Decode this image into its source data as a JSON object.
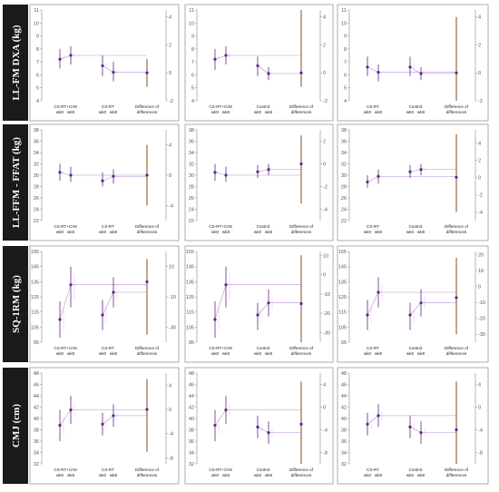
{
  "colors": {
    "label_bg": "#1a1a1a",
    "primary": "#5b2a86",
    "secondary": "#b98fd6",
    "diff_ci": "#8b4a12",
    "faint": "#f3d6f3",
    "axis": "#888888"
  },
  "rows": [
    {
      "label": "LL-FM DXA (kg)",
      "left_ticks": [
        "4",
        "5",
        "6",
        "7",
        "8",
        "9",
        "10",
        "11"
      ],
      "left_lim": [
        4,
        11
      ]
    },
    {
      "label": "LL-FFM - FFAT (kg)",
      "left_ticks": [
        "22",
        "24",
        "26",
        "28",
        "30",
        "32",
        "34",
        "36",
        "38"
      ],
      "left_lim": [
        22,
        38
      ]
    },
    {
      "label": "SQ-1RM (kg)",
      "left_ticks": [
        "95",
        "105",
        "115",
        "125",
        "135",
        "145",
        "155"
      ],
      "left_lim": [
        95,
        155
      ]
    },
    {
      "label": "CMJ (cm)",
      "left_ticks": [
        "32",
        "34",
        "36",
        "38",
        "40",
        "42",
        "44",
        "46",
        "48"
      ],
      "left_lim": [
        32,
        48
      ]
    }
  ],
  "x_labels": {
    "wk0": "wk0",
    "wk8": "wk8",
    "diff": [
      "Difference of",
      "differences"
    ]
  },
  "chart_data": [
    {
      "type": "scatter",
      "row": 0,
      "col": 0,
      "groups": [
        "CS-RT+CrM",
        "CS-RT"
      ],
      "right_ticks": [
        "-2",
        "0",
        "2",
        "4"
      ],
      "right_lim": [
        -2,
        4.5
      ],
      "series": [
        {
          "name": "CS-RT+CrM",
          "wk0": [
            7.2,
            6.5,
            8.0
          ],
          "wk8": [
            7.5,
            6.8,
            8.2
          ]
        },
        {
          "name": "CS-RT",
          "wk0": [
            6.7,
            5.9,
            7.5
          ],
          "wk8": [
            6.2,
            5.5,
            7.0
          ]
        }
      ],
      "diff": [
        0.0,
        -1.0,
        1.0
      ]
    },
    {
      "type": "scatter",
      "row": 0,
      "col": 1,
      "groups": [
        "CS-RT+CrM",
        "Control"
      ],
      "right_ticks": [
        "-2",
        "0",
        "2",
        "4"
      ],
      "right_lim": [
        -2,
        4.5
      ],
      "series": [
        {
          "name": "CS-RT+CrM",
          "wk0": [
            7.2,
            6.4,
            8.0
          ],
          "wk8": [
            7.5,
            6.8,
            8.2
          ]
        },
        {
          "name": "Control",
          "wk0": [
            6.7,
            5.9,
            7.4
          ],
          "wk8": [
            6.1,
            5.6,
            6.6
          ]
        }
      ],
      "diff": [
        0.0,
        -1.0,
        4.5
      ]
    },
    {
      "type": "scatter",
      "row": 0,
      "col": 2,
      "groups": [
        "CS-RT",
        "Control"
      ],
      "right_ticks": [
        "-2",
        "0",
        "2",
        "4"
      ],
      "right_lim": [
        -2,
        4.5
      ],
      "series": [
        {
          "name": "CS-RT",
          "wk0": [
            6.6,
            5.9,
            7.4
          ],
          "wk8": [
            6.2,
            5.5,
            6.8
          ]
        },
        {
          "name": "Control",
          "wk0": [
            6.6,
            5.9,
            7.4
          ],
          "wk8": [
            6.1,
            5.6,
            6.6
          ]
        }
      ],
      "diff": [
        0.0,
        -2.0,
        4.0
      ]
    },
    {
      "type": "scatter",
      "row": 1,
      "col": 0,
      "groups": [
        "CS-RT+CrM",
        "CS-RT"
      ],
      "right_ticks": [
        "-4",
        "0",
        "4"
      ],
      "right_lim": [
        -6,
        6
      ],
      "series": [
        {
          "name": "CS-RT+CrM",
          "wk0": [
            30.5,
            29.0,
            32.0
          ],
          "wk8": [
            30.0,
            28.8,
            31.5
          ]
        },
        {
          "name": "CS-RT",
          "wk0": [
            29.0,
            28.0,
            30.5
          ],
          "wk8": [
            29.8,
            28.5,
            31.0
          ]
        }
      ],
      "diff": [
        0.0,
        -4.0,
        4.0
      ]
    },
    {
      "type": "scatter",
      "row": 1,
      "col": 1,
      "groups": [
        "CS-RT+CrM",
        "Control"
      ],
      "right_ticks": [
        "-4",
        "-2",
        "0",
        "2"
      ],
      "right_lim": [
        -5,
        3
      ],
      "series": [
        {
          "name": "CS-RT+CrM",
          "wk0": [
            30.5,
            29.0,
            32.0
          ],
          "wk8": [
            30.0,
            28.8,
            31.5
          ]
        },
        {
          "name": "Control",
          "wk0": [
            30.6,
            29.5,
            31.8
          ],
          "wk8": [
            31.0,
            30.0,
            32.0
          ]
        }
      ],
      "diff": [
        0.0,
        -3.5,
        2.5
      ]
    },
    {
      "type": "scatter",
      "row": 1,
      "col": 2,
      "groups": [
        "CS-RT",
        "Control"
      ],
      "right_ticks": [
        "-4",
        "-2",
        "0",
        "2",
        "4"
      ],
      "right_lim": [
        -5,
        5.5
      ],
      "series": [
        {
          "name": "CS-RT",
          "wk0": [
            28.8,
            27.8,
            30.0
          ],
          "wk8": [
            29.8,
            28.5,
            31.0
          ]
        },
        {
          "name": "Control",
          "wk0": [
            30.6,
            29.5,
            31.8
          ],
          "wk8": [
            31.0,
            30.0,
            32.0
          ]
        }
      ],
      "diff": [
        0.0,
        -4.0,
        5.0
      ]
    },
    {
      "type": "scatter",
      "row": 2,
      "col": 0,
      "groups": [
        "CS-RT+CrM",
        "CS-RT"
      ],
      "right_ticks": [
        "-30",
        "-10",
        "10"
      ],
      "right_lim": [
        -40,
        20
      ],
      "series": [
        {
          "name": "CS-RT+CrM",
          "wk0": [
            110.0,
            98.0,
            122.0
          ],
          "wk8": [
            133.0,
            118.0,
            145.0
          ]
        },
        {
          "name": "CS-RT",
          "wk0": [
            113.0,
            103.0,
            123.0
          ],
          "wk8": [
            128.0,
            118.0,
            138.0
          ]
        }
      ],
      "diff": [
        0.0,
        -35.0,
        15.0
      ]
    },
    {
      "type": "scatter",
      "row": 2,
      "col": 1,
      "groups": [
        "CS-RT+CrM",
        "Control"
      ],
      "right_ticks": [
        "-30",
        "-20",
        "-10",
        "0",
        "10"
      ],
      "right_lim": [
        -35,
        12
      ],
      "series": [
        {
          "name": "CS-RT+CrM",
          "wk0": [
            110.0,
            98.0,
            122.0
          ],
          "wk8": [
            133.0,
            118.0,
            145.0
          ]
        },
        {
          "name": "Control",
          "wk0": [
            113.0,
            103.0,
            121.0
          ],
          "wk8": [
            121.0,
            112.0,
            130.0
          ]
        }
      ],
      "diff": [
        -15.0,
        -35.0,
        10.0
      ]
    },
    {
      "type": "scatter",
      "row": 2,
      "col": 2,
      "groups": [
        "CS-RT",
        "Control"
      ],
      "right_ticks": [
        "-30",
        "-20",
        "-10",
        "0",
        "10",
        "20"
      ],
      "right_lim": [
        -35,
        22
      ],
      "series": [
        {
          "name": "CS-RT",
          "wk0": [
            113.0,
            103.0,
            123.0
          ],
          "wk8": [
            128.0,
            118.0,
            138.0
          ]
        },
        {
          "name": "Control",
          "wk0": [
            113.0,
            103.0,
            121.0
          ],
          "wk8": [
            121.0,
            112.0,
            130.0
          ]
        }
      ],
      "diff": [
        -7.0,
        -30.0,
        18.0
      ]
    },
    {
      "type": "scatter",
      "row": 3,
      "col": 0,
      "groups": [
        "CS-RT+CrM",
        "CS-RT"
      ],
      "right_ticks": [
        "-8",
        "-4",
        "0",
        "4"
      ],
      "right_lim": [
        -9,
        6
      ],
      "series": [
        {
          "name": "CS-RT+CrM",
          "wk0": [
            38.8,
            36.0,
            41.5
          ],
          "wk8": [
            41.5,
            39.0,
            44.0
          ]
        },
        {
          "name": "CS-RT",
          "wk0": [
            39.0,
            37.0,
            41.0
          ],
          "wk8": [
            40.5,
            38.5,
            42.5
          ]
        }
      ],
      "diff": [
        0.0,
        -7.0,
        5.0
      ]
    },
    {
      "type": "scatter",
      "row": 3,
      "col": 1,
      "groups": [
        "CS-RT+CrM",
        "Control"
      ],
      "right_ticks": [
        "-8",
        "-4",
        "0",
        "4"
      ],
      "right_lim": [
        -10,
        6
      ],
      "series": [
        {
          "name": "CS-RT+CrM",
          "wk0": [
            38.8,
            36.0,
            41.5
          ],
          "wk8": [
            41.5,
            39.0,
            44.0
          ]
        },
        {
          "name": "Control",
          "wk0": [
            38.5,
            36.5,
            40.5
          ],
          "wk8": [
            37.5,
            35.5,
            39.5
          ]
        }
      ],
      "diff": [
        -3.0,
        -10.0,
        4.5
      ]
    },
    {
      "type": "scatter",
      "row": 3,
      "col": 2,
      "groups": [
        "CS-RT",
        "Control"
      ],
      "right_ticks": [
        "-8",
        "-4",
        "0",
        "4"
      ],
      "right_lim": [
        -10,
        6
      ],
      "series": [
        {
          "name": "CS-RT",
          "wk0": [
            39.0,
            37.0,
            41.0
          ],
          "wk8": [
            40.5,
            38.5,
            42.5
          ]
        },
        {
          "name": "Control",
          "wk0": [
            38.5,
            36.5,
            40.5
          ],
          "wk8": [
            37.5,
            35.5,
            39.5
          ]
        }
      ],
      "diff": [
        -4.0,
        -10.0,
        4.5
      ]
    }
  ]
}
